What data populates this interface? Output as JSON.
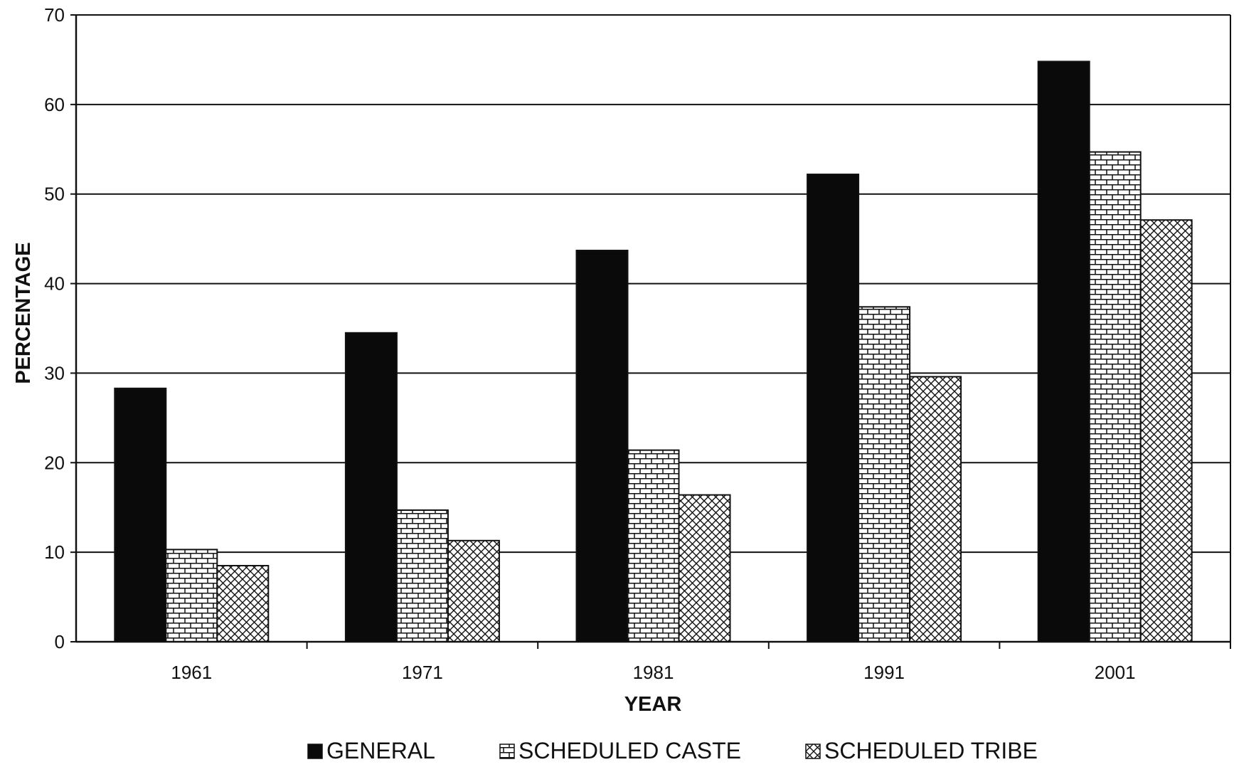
{
  "chart_data": {
    "type": "bar",
    "title": "",
    "xlabel": "YEAR",
    "ylabel": "PERCENTAGE",
    "ylim": [
      0,
      70
    ],
    "yticks": [
      0,
      10,
      20,
      30,
      40,
      50,
      60,
      70
    ],
    "grid": true,
    "legend_position": "bottom",
    "categories": [
      "1961",
      "1971",
      "1981",
      "1991",
      "2001"
    ],
    "series": [
      {
        "name": "GENERAL",
        "values": [
          28.3,
          34.5,
          43.7,
          52.2,
          64.8
        ],
        "pattern": "solid-black"
      },
      {
        "name": "SCHEDULED CASTE",
        "values": [
          10.3,
          14.7,
          21.4,
          37.4,
          54.7
        ],
        "pattern": "brick"
      },
      {
        "name": "SCHEDULED TRIBE",
        "values": [
          8.5,
          11.3,
          16.4,
          29.6,
          47.1
        ],
        "pattern": "diagonal-crosshatch"
      }
    ]
  }
}
